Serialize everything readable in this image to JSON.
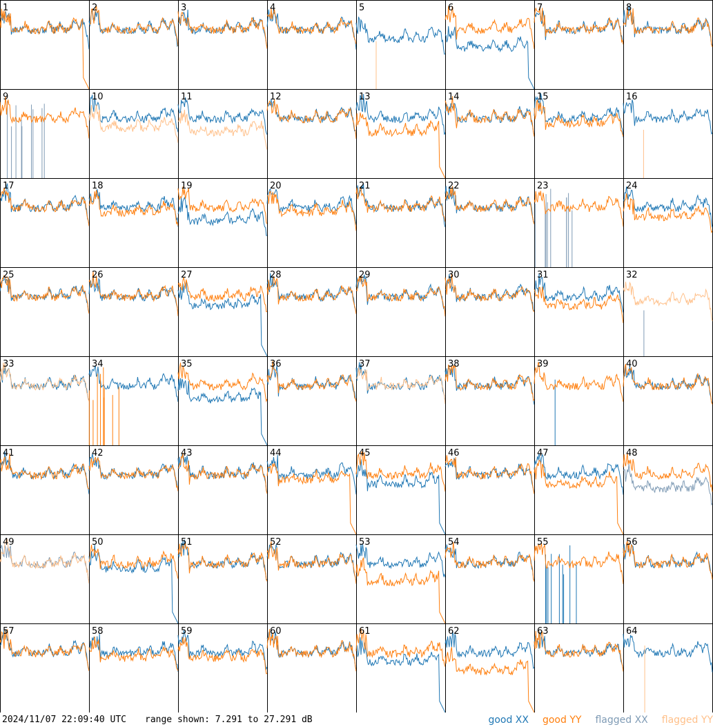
{
  "chart_data": {
    "type": "line",
    "panel_count": 64,
    "ylim": [
      7.291,
      27.291
    ],
    "series_styles": [
      {
        "name": "good XX",
        "color": "#1f77b4"
      },
      {
        "name": "good YY",
        "color": "#ff7f0e"
      },
      {
        "name": "flagged XX",
        "color": "#7f9bb5"
      },
      {
        "name": "flagged YY",
        "color": "#ffc08a"
      }
    ],
    "panels": [
      {
        "label": "1",
        "xx": "good",
        "yy": "good",
        "xx_off": 0,
        "yy_off": 0,
        "yy_shape": "drop"
      },
      {
        "label": "2",
        "xx": "good",
        "yy": "good",
        "xx_off": 0,
        "yy_off": 0
      },
      {
        "label": "3",
        "xx": "good",
        "yy": "good",
        "xx_off": 0,
        "yy_off": 0
      },
      {
        "label": "4",
        "xx": "good",
        "yy": "good",
        "xx_off": 0,
        "yy_off": 0
      },
      {
        "label": "5",
        "xx": "good",
        "yy": "flagged",
        "xx_off": -2,
        "yy_shape": "spike"
      },
      {
        "label": "6",
        "xx": "good",
        "yy": "good",
        "xx_off": -4,
        "yy_off": 0,
        "xx_shape": "drop"
      },
      {
        "label": "7",
        "xx": "good",
        "yy": "good",
        "xx_off": 0,
        "yy_off": 0
      },
      {
        "label": "8",
        "xx": "good",
        "yy": "good",
        "xx_off": 0,
        "yy_off": 0
      },
      {
        "label": "9",
        "xx": "flagged",
        "yy": "good",
        "yy_off": 0,
        "xx_shape": "spikes"
      },
      {
        "label": "10",
        "xx": "good",
        "yy": "flagged",
        "xx_off": 0,
        "yy_off": -2
      },
      {
        "label": "11",
        "xx": "good",
        "yy": "flagged",
        "xx_off": 0,
        "yy_off": -3
      },
      {
        "label": "12",
        "xx": "good",
        "yy": "good",
        "xx_off": 0,
        "yy_off": 0
      },
      {
        "label": "13",
        "xx": "good",
        "yy": "good",
        "xx_off": 0,
        "yy_off": -3,
        "yy_shape": "drop"
      },
      {
        "label": "14",
        "xx": "good",
        "yy": "good",
        "xx_off": 0,
        "yy_off": 0
      },
      {
        "label": "15",
        "xx": "good",
        "yy": "good",
        "xx_off": 0,
        "yy_off": -1
      },
      {
        "label": "16",
        "xx": "good",
        "yy": "flagged",
        "xx_off": 0,
        "yy_shape": "spike"
      },
      {
        "label": "17",
        "xx": "good",
        "yy": "good",
        "xx_off": 0,
        "yy_off": 0
      },
      {
        "label": "18",
        "xx": "good",
        "yy": "good",
        "xx_off": 0,
        "yy_off": -1
      },
      {
        "label": "19",
        "xx": "good",
        "yy": "good",
        "xx_off": -3,
        "yy_off": 0
      },
      {
        "label": "20",
        "xx": "good",
        "yy": "good",
        "xx_off": 0,
        "yy_off": -1
      },
      {
        "label": "21",
        "xx": "good",
        "yy": "good",
        "xx_off": 0,
        "yy_off": 0
      },
      {
        "label": "22",
        "xx": "good",
        "yy": "good",
        "xx_off": 0,
        "yy_off": 0
      },
      {
        "label": "23",
        "xx": "flagged",
        "yy": "good",
        "yy_off": 0,
        "xx_shape": "spikes"
      },
      {
        "label": "24",
        "xx": "good",
        "yy": "good",
        "xx_off": 0,
        "yy_off": -2
      },
      {
        "label": "25",
        "xx": "good",
        "yy": "good",
        "xx_off": 0,
        "yy_off": 0
      },
      {
        "label": "26",
        "xx": "good",
        "yy": "good",
        "xx_off": 0,
        "yy_off": 0
      },
      {
        "label": "27",
        "xx": "good",
        "yy": "good",
        "xx_off": -2,
        "yy_off": 0,
        "xx_shape": "drop"
      },
      {
        "label": "28",
        "xx": "good",
        "yy": "good",
        "xx_off": 0,
        "yy_off": 0
      },
      {
        "label": "29",
        "xx": "good",
        "yy": "good",
        "xx_off": 0,
        "yy_off": 0
      },
      {
        "label": "30",
        "xx": "good",
        "yy": "good",
        "xx_off": 0,
        "yy_off": 0
      },
      {
        "label": "31",
        "xx": "good",
        "yy": "good",
        "xx_off": 0,
        "yy_off": -2
      },
      {
        "label": "32",
        "xx": "flagged",
        "yy": "flagged",
        "yy_off": -1,
        "xx_shape": "spike"
      },
      {
        "label": "33",
        "xx": "good",
        "yy": "flagged",
        "xx_off": 0,
        "yy_off": 0
      },
      {
        "label": "34",
        "xx": "good",
        "yy": "good",
        "xx_off": 0,
        "yy_shape": "spikes"
      },
      {
        "label": "35",
        "xx": "good",
        "yy": "good",
        "xx_off": -3,
        "yy_off": 0,
        "xx_shape": "drop"
      },
      {
        "label": "36",
        "xx": "good",
        "yy": "good",
        "xx_off": 0,
        "yy_off": 0
      },
      {
        "label": "37",
        "xx": "good",
        "yy": "flagged",
        "xx_off": 0,
        "yy_off": 0
      },
      {
        "label": "38",
        "xx": "good",
        "yy": "good",
        "xx_off": 0,
        "yy_off": 0
      },
      {
        "label": "39",
        "xx": "good",
        "yy": "good",
        "yy_off": 0,
        "xx_shape": "spike"
      },
      {
        "label": "40",
        "xx": "good",
        "yy": "good",
        "xx_off": 0,
        "yy_off": 0
      },
      {
        "label": "41",
        "xx": "good",
        "yy": "good",
        "xx_off": 0,
        "yy_off": 0
      },
      {
        "label": "42",
        "xx": "good",
        "yy": "good",
        "xx_off": 0,
        "yy_off": 0
      },
      {
        "label": "43",
        "xx": "good",
        "yy": "good",
        "xx_off": 0,
        "yy_off": 0
      },
      {
        "label": "44",
        "xx": "good",
        "yy": "good",
        "xx_off": 0,
        "yy_off": -1,
        "yy_shape": "drop"
      },
      {
        "label": "45",
        "xx": "good",
        "yy": "good",
        "xx_off": -2,
        "yy_off": 0,
        "xx_shape": "drop"
      },
      {
        "label": "46",
        "xx": "good",
        "yy": "good",
        "xx_off": 0,
        "yy_off": 0
      },
      {
        "label": "47",
        "xx": "good",
        "yy": "good",
        "xx_off": 0,
        "yy_off": -2,
        "yy_shape": "drop"
      },
      {
        "label": "48",
        "xx": "flagged",
        "yy": "good",
        "xx_off": -3,
        "yy_off": 0
      },
      {
        "label": "49",
        "xx": "flagged",
        "yy": "flagged",
        "xx_off": 0,
        "yy_off": 0
      },
      {
        "label": "50",
        "xx": "good",
        "yy": "good",
        "xx_off": -1,
        "yy_off": 0,
        "xx_shape": "drop"
      },
      {
        "label": "51",
        "xx": "good",
        "yy": "good",
        "xx_off": 0,
        "yy_off": 0
      },
      {
        "label": "52",
        "xx": "good",
        "yy": "good",
        "xx_off": 0,
        "yy_off": 0
      },
      {
        "label": "53",
        "xx": "good",
        "yy": "good",
        "xx_off": 0,
        "yy_off": -4,
        "yy_shape": "drop"
      },
      {
        "label": "54",
        "xx": "good",
        "yy": "good",
        "xx_off": 0,
        "yy_off": 0
      },
      {
        "label": "55",
        "xx": "good",
        "yy": "good",
        "yy_off": 0,
        "xx_shape": "spikes"
      },
      {
        "label": "56",
        "xx": "good",
        "yy": "good",
        "xx_off": 0,
        "yy_off": 0
      },
      {
        "label": "57",
        "xx": "good",
        "yy": "good",
        "xx_off": 0,
        "yy_off": 0
      },
      {
        "label": "58",
        "xx": "good",
        "yy": "good",
        "xx_off": 0,
        "yy_off": -1
      },
      {
        "label": "59",
        "xx": "good",
        "yy": "good",
        "xx_off": 0,
        "yy_off": -1
      },
      {
        "label": "60",
        "xx": "good",
        "yy": "good",
        "xx_off": 0,
        "yy_off": 0
      },
      {
        "label": "61",
        "xx": "good",
        "yy": "good",
        "xx_off": -2,
        "yy_off": 0,
        "xx_shape": "drop"
      },
      {
        "label": "62",
        "xx": "good",
        "yy": "good",
        "xx_off": 0,
        "yy_off": -4,
        "yy_shape": "drop"
      },
      {
        "label": "63",
        "xx": "good",
        "yy": "good",
        "xx_off": 0,
        "yy_off": 0
      },
      {
        "label": "64",
        "xx": "good",
        "yy": "flagged",
        "xx_off": 0,
        "yy_shape": "spike"
      }
    ]
  },
  "footer": {
    "timestamp": "2024/11/07 22:09:40 UTC",
    "range": "range shown: 7.291 to 27.291 dB",
    "legend": {
      "good_xx": "good XX",
      "good_yy": "good YY",
      "flagged_xx": "flagged XX",
      "flagged_yy": "flagged YY"
    }
  }
}
